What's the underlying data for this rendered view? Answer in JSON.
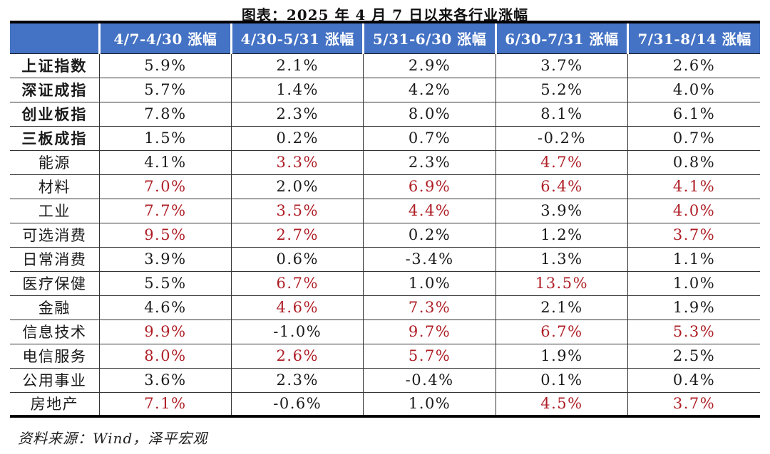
{
  "title": "图表：2025 年 4 月 7 日以来各行业涨幅",
  "source_note": "资料来源：Wind，泽平宏观",
  "colors": {
    "header_bg": "#4472C4",
    "header_text": "#FFFFFF",
    "highlight_red": "#AE1E26",
    "body_text": "#1A1A1A"
  },
  "chart_data": {
    "type": "table",
    "title": "图表：2025 年 4 月 7 日以来各行业涨幅",
    "corner_header": "",
    "columns": [
      "4/7-4/30 涨幅",
      "4/30-5/31 涨幅",
      "5/31-6/30 涨幅",
      "6/30-7/31 涨幅",
      "7/31-8/14 涨幅"
    ],
    "rows": [
      {
        "label": "上证指数",
        "group": "index",
        "values": [
          "5.9%",
          "2.1%",
          "2.9%",
          "3.7%",
          "2.6%"
        ],
        "highlight": [
          0,
          0,
          0,
          0,
          0
        ]
      },
      {
        "label": "深证成指",
        "group": "index",
        "values": [
          "5.7%",
          "1.4%",
          "4.2%",
          "5.2%",
          "4.0%"
        ],
        "highlight": [
          0,
          0,
          0,
          0,
          0
        ]
      },
      {
        "label": "创业板指",
        "group": "index",
        "values": [
          "7.8%",
          "2.3%",
          "8.0%",
          "8.1%",
          "6.1%"
        ],
        "highlight": [
          0,
          0,
          0,
          0,
          0
        ]
      },
      {
        "label": "三板成指",
        "group": "index",
        "values": [
          "1.5%",
          "0.2%",
          "0.7%",
          "-0.2%",
          "0.7%"
        ],
        "highlight": [
          0,
          0,
          0,
          0,
          0
        ]
      },
      {
        "label": "能源",
        "group": "sector",
        "values": [
          "4.1%",
          "3.3%",
          "2.3%",
          "4.7%",
          "0.8%"
        ],
        "highlight": [
          0,
          1,
          0,
          1,
          0
        ]
      },
      {
        "label": "材料",
        "group": "sector",
        "values": [
          "7.0%",
          "2.0%",
          "6.9%",
          "6.4%",
          "4.1%"
        ],
        "highlight": [
          1,
          0,
          1,
          1,
          1
        ]
      },
      {
        "label": "工业",
        "group": "sector",
        "values": [
          "7.7%",
          "3.5%",
          "4.4%",
          "3.9%",
          "4.0%"
        ],
        "highlight": [
          1,
          1,
          1,
          0,
          1
        ]
      },
      {
        "label": "可选消费",
        "group": "sector",
        "values": [
          "9.5%",
          "2.7%",
          "0.2%",
          "1.2%",
          "3.7%"
        ],
        "highlight": [
          1,
          1,
          0,
          0,
          1
        ]
      },
      {
        "label": "日常消费",
        "group": "sector",
        "values": [
          "3.9%",
          "0.6%",
          "-3.4%",
          "1.3%",
          "1.1%"
        ],
        "highlight": [
          0,
          0,
          0,
          0,
          0
        ]
      },
      {
        "label": "医疗保健",
        "group": "sector",
        "values": [
          "5.5%",
          "6.7%",
          "1.0%",
          "13.5%",
          "1.0%"
        ],
        "highlight": [
          0,
          1,
          0,
          1,
          0
        ]
      },
      {
        "label": "金融",
        "group": "sector",
        "values": [
          "4.6%",
          "4.6%",
          "7.3%",
          "2.1%",
          "1.9%"
        ],
        "highlight": [
          0,
          1,
          1,
          0,
          0
        ]
      },
      {
        "label": "信息技术",
        "group": "sector",
        "values": [
          "9.9%",
          "-1.0%",
          "9.7%",
          "6.7%",
          "5.3%"
        ],
        "highlight": [
          1,
          0,
          1,
          1,
          1
        ]
      },
      {
        "label": "电信服务",
        "group": "sector",
        "values": [
          "8.0%",
          "2.6%",
          "5.7%",
          "1.9%",
          "2.5%"
        ],
        "highlight": [
          1,
          1,
          1,
          0,
          0
        ]
      },
      {
        "label": "公用事业",
        "group": "sector",
        "values": [
          "3.6%",
          "2.3%",
          "-0.4%",
          "0.1%",
          "0.4%"
        ],
        "highlight": [
          0,
          0,
          0,
          0,
          0
        ]
      },
      {
        "label": "房地产",
        "group": "sector",
        "values": [
          "7.1%",
          "-0.6%",
          "1.0%",
          "4.5%",
          "3.7%"
        ],
        "highlight": [
          1,
          0,
          0,
          1,
          1
        ]
      }
    ]
  }
}
